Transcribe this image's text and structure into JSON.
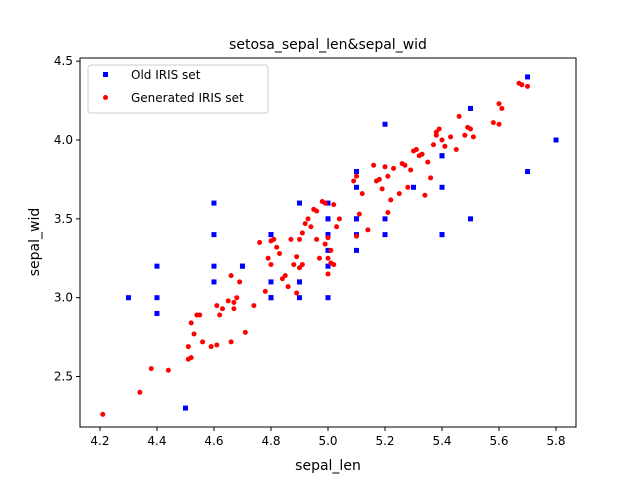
{
  "chart_data": {
    "type": "scatter",
    "title": "setosa_sepal_len&sepal_wid",
    "xlabel": "sepal_len",
    "ylabel": "sepal_wid",
    "xlim": [
      4.13,
      5.87
    ],
    "ylim": [
      2.18,
      4.52
    ],
    "x_ticks": [
      "4.2",
      "4.4",
      "4.6",
      "4.8",
      "5.0",
      "5.2",
      "5.4",
      "5.6",
      "5.8"
    ],
    "y_ticks": [
      "2.5",
      "3.0",
      "3.5",
      "4.0",
      "4.5"
    ],
    "grid": false,
    "legend_position": "top-left",
    "series": [
      {
        "name": "Old IRIS set",
        "color": "#0000ff",
        "marker": "square",
        "x": [
          5.1,
          4.9,
          4.7,
          4.6,
          5.0,
          5.4,
          4.6,
          5.0,
          4.4,
          4.9,
          5.4,
          4.8,
          4.8,
          4.3,
          5.8,
          5.7,
          5.4,
          5.1,
          5.7,
          5.1,
          5.4,
          5.1,
          4.6,
          5.1,
          4.8,
          5.0,
          5.0,
          5.2,
          5.2,
          4.7,
          4.8,
          5.4,
          5.2,
          5.5,
          4.9,
          5.0,
          5.5,
          4.9,
          4.4,
          5.1,
          5.0,
          4.5,
          4.4,
          5.0,
          5.1,
          4.8,
          5.1,
          4.6,
          5.3,
          5.0
        ],
        "y": [
          3.5,
          3.0,
          3.2,
          3.1,
          3.6,
          3.9,
          3.4,
          3.4,
          2.9,
          3.1,
          3.7,
          3.4,
          3.0,
          3.0,
          4.0,
          4.4,
          3.9,
          3.5,
          3.8,
          3.8,
          3.4,
          3.7,
          3.6,
          3.3,
          3.4,
          3.0,
          3.4,
          3.5,
          3.4,
          3.2,
          3.1,
          3.4,
          4.1,
          4.2,
          3.1,
          3.2,
          3.5,
          3.6,
          3.0,
          3.4,
          3.5,
          2.3,
          3.2,
          3.5,
          3.8,
          3.0,
          3.8,
          3.2,
          3.7,
          3.3
        ]
      },
      {
        "name": "Generated IRIS set",
        "color": "#ff0000",
        "marker": "circle",
        "x": [
          4.21,
          4.34,
          4.38,
          4.44,
          4.51,
          4.51,
          4.52,
          4.52,
          4.53,
          4.54,
          4.55,
          4.56,
          4.59,
          4.61,
          4.61,
          4.62,
          4.63,
          4.65,
          4.66,
          4.66,
          4.67,
          4.67,
          4.68,
          4.69,
          4.71,
          4.74,
          4.76,
          4.78,
          4.79,
          4.8,
          4.8,
          4.81,
          4.82,
          4.83,
          4.84,
          4.85,
          4.86,
          4.87,
          4.88,
          4.89,
          4.89,
          4.9,
          4.9,
          4.91,
          4.91,
          4.92,
          4.93,
          4.94,
          4.95,
          4.96,
          4.96,
          4.97,
          4.98,
          4.99,
          4.99,
          5.0,
          5.0,
          5.0,
          5.01,
          5.01,
          5.02,
          5.02,
          5.03,
          5.04,
          5.09,
          5.1,
          5.1,
          5.11,
          5.12,
          5.14,
          5.16,
          5.17,
          5.18,
          5.19,
          5.2,
          5.21,
          5.21,
          5.22,
          5.23,
          5.25,
          5.26,
          5.27,
          5.28,
          5.29,
          5.3,
          5.31,
          5.32,
          5.33,
          5.34,
          5.35,
          5.36,
          5.37,
          5.38,
          5.38,
          5.39,
          5.4,
          5.41,
          5.43,
          5.45,
          5.46,
          5.48,
          5.49,
          5.5,
          5.51,
          5.58,
          5.6,
          5.6,
          5.61,
          5.67,
          5.68,
          5.7
        ],
        "y": [
          2.26,
          2.4,
          2.55,
          2.54,
          2.69,
          2.61,
          2.62,
          2.84,
          2.77,
          2.89,
          2.89,
          2.72,
          2.69,
          2.95,
          2.7,
          2.89,
          2.93,
          2.98,
          2.72,
          3.14,
          2.93,
          2.97,
          3.0,
          3.1,
          2.78,
          2.95,
          3.35,
          3.04,
          3.25,
          3.21,
          3.36,
          3.37,
          3.32,
          3.28,
          3.12,
          3.14,
          3.07,
          3.37,
          3.21,
          3.26,
          3.03,
          3.37,
          3.19,
          3.41,
          3.21,
          3.47,
          3.5,
          3.45,
          3.56,
          3.37,
          3.55,
          3.25,
          3.61,
          3.6,
          3.34,
          3.38,
          3.25,
          3.15,
          3.22,
          3.3,
          3.21,
          3.59,
          3.45,
          3.5,
          3.74,
          3.77,
          3.39,
          3.53,
          3.66,
          3.43,
          3.84,
          3.74,
          3.75,
          3.69,
          3.83,
          3.77,
          3.54,
          3.62,
          3.82,
          3.66,
          3.85,
          3.84,
          3.7,
          3.81,
          3.93,
          3.94,
          3.9,
          3.91,
          3.65,
          3.86,
          3.76,
          3.97,
          4.05,
          4.03,
          4.07,
          4.0,
          3.96,
          4.02,
          3.94,
          4.15,
          4.03,
          4.08,
          4.07,
          4.02,
          4.11,
          4.23,
          4.1,
          4.2,
          4.36,
          4.35,
          4.34
        ]
      }
    ]
  }
}
